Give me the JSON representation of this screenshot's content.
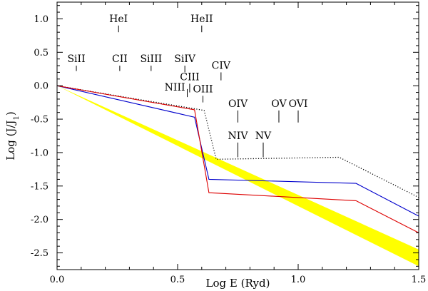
{
  "chart_data": {
    "type": "line",
    "title": "",
    "xlabel": "Log E (Ryd)",
    "ylabel_main": "Log (J/J",
    "ylabel_sub": "1",
    "ylabel_end": ")",
    "xlim": [
      0.0,
      1.5
    ],
    "ylim": [
      -2.75,
      1.25
    ],
    "xticks": [
      {
        "value": 0.0,
        "label": "0.0"
      },
      {
        "value": 0.5,
        "label": "0.5"
      },
      {
        "value": 1.0,
        "label": "1.0"
      },
      {
        "value": 1.5,
        "label": "1.5"
      }
    ],
    "yticks": [
      {
        "value": 1.0,
        "label": "1.0"
      },
      {
        "value": 0.5,
        "label": "0.5"
      },
      {
        "value": 0.0,
        "label": "0.0"
      },
      {
        "value": -0.5,
        "label": "-0.5"
      },
      {
        "value": -1.0,
        "label": "-1.0"
      },
      {
        "value": -1.5,
        "label": "-1.5"
      },
      {
        "value": -2.0,
        "label": "-2.0"
      },
      {
        "value": -2.5,
        "label": "-2.5"
      }
    ],
    "band": {
      "name": "power-law band",
      "color": "#ffff00",
      "upper": [
        [
          0.0,
          0.0
        ],
        [
          1.5,
          -2.45
        ]
      ],
      "lower": [
        [
          0.0,
          0.0
        ],
        [
          1.5,
          -2.7
        ]
      ]
    },
    "series": [
      {
        "name": "dotted",
        "color": "#000000",
        "dash": "dotted",
        "x": [
          0.0,
          0.58,
          0.61,
          0.66,
          1.17,
          1.5
        ],
        "y": [
          0.0,
          -0.35,
          -0.37,
          -1.1,
          -1.07,
          -1.67
        ]
      },
      {
        "name": "blue",
        "color": "#0000cc",
        "dash": "solid",
        "x": [
          0.0,
          0.57,
          0.63,
          1.24,
          1.5
        ],
        "y": [
          0.0,
          -0.47,
          -1.4,
          -1.46,
          -1.95
        ]
      },
      {
        "name": "red",
        "color": "#dd0000",
        "dash": "solid",
        "x": [
          0.0,
          0.57,
          0.63,
          1.24,
          1.5
        ],
        "y": [
          0.0,
          -0.36,
          -1.6,
          -1.72,
          -2.2
        ]
      }
    ],
    "ion_markers": [
      {
        "label": "SiII",
        "x": 0.08,
        "y_top": 0.3,
        "y_bottom": 0.22,
        "label_pos": "above"
      },
      {
        "label": "HeI",
        "x": 0.255,
        "y_top": 0.9,
        "y_bottom": 0.8,
        "label_pos": "above"
      },
      {
        "label": "CII",
        "x": 0.26,
        "y_top": 0.3,
        "y_bottom": 0.22,
        "label_pos": "above"
      },
      {
        "label": "SiIII",
        "x": 0.39,
        "y_top": 0.3,
        "y_bottom": 0.22,
        "label_pos": "above"
      },
      {
        "label": "SiIV",
        "x": 0.53,
        "y_top": 0.3,
        "y_bottom": 0.2,
        "label_pos": "above"
      },
      {
        "label": "HeII",
        "x": 0.6,
        "y_top": 0.9,
        "y_bottom": 0.8,
        "label_pos": "above"
      },
      {
        "label": "CIII",
        "x": 0.55,
        "y_top": 0.03,
        "y_bottom": -0.1,
        "label_pos": "above"
      },
      {
        "label": "CIV",
        "x": 0.68,
        "y_top": 0.2,
        "y_bottom": 0.08,
        "label_pos": "above"
      },
      {
        "label": "NIII",
        "x": 0.54,
        "y_top": -0.05,
        "y_bottom": -0.17,
        "label_pos": "left"
      },
      {
        "label": "OIII",
        "x": 0.605,
        "y_top": -0.15,
        "y_bottom": -0.25,
        "label_pos": "above"
      },
      {
        "label": "OIV",
        "x": 0.75,
        "y_top": -0.37,
        "y_bottom": -0.55,
        "label_pos": "above"
      },
      {
        "label": "OV",
        "x": 0.92,
        "y_top": -0.37,
        "y_bottom": -0.55,
        "label_pos": "above"
      },
      {
        "label": "OVI",
        "x": 1.0,
        "y_top": -0.37,
        "y_bottom": -0.55,
        "label_pos": "above"
      },
      {
        "label": "NIV",
        "x": 0.75,
        "y_top": -0.85,
        "y_bottom": -1.07,
        "label_pos": "above"
      },
      {
        "label": "NV",
        "x": 0.855,
        "y_top": -0.85,
        "y_bottom": -1.07,
        "label_pos": "above"
      }
    ]
  }
}
